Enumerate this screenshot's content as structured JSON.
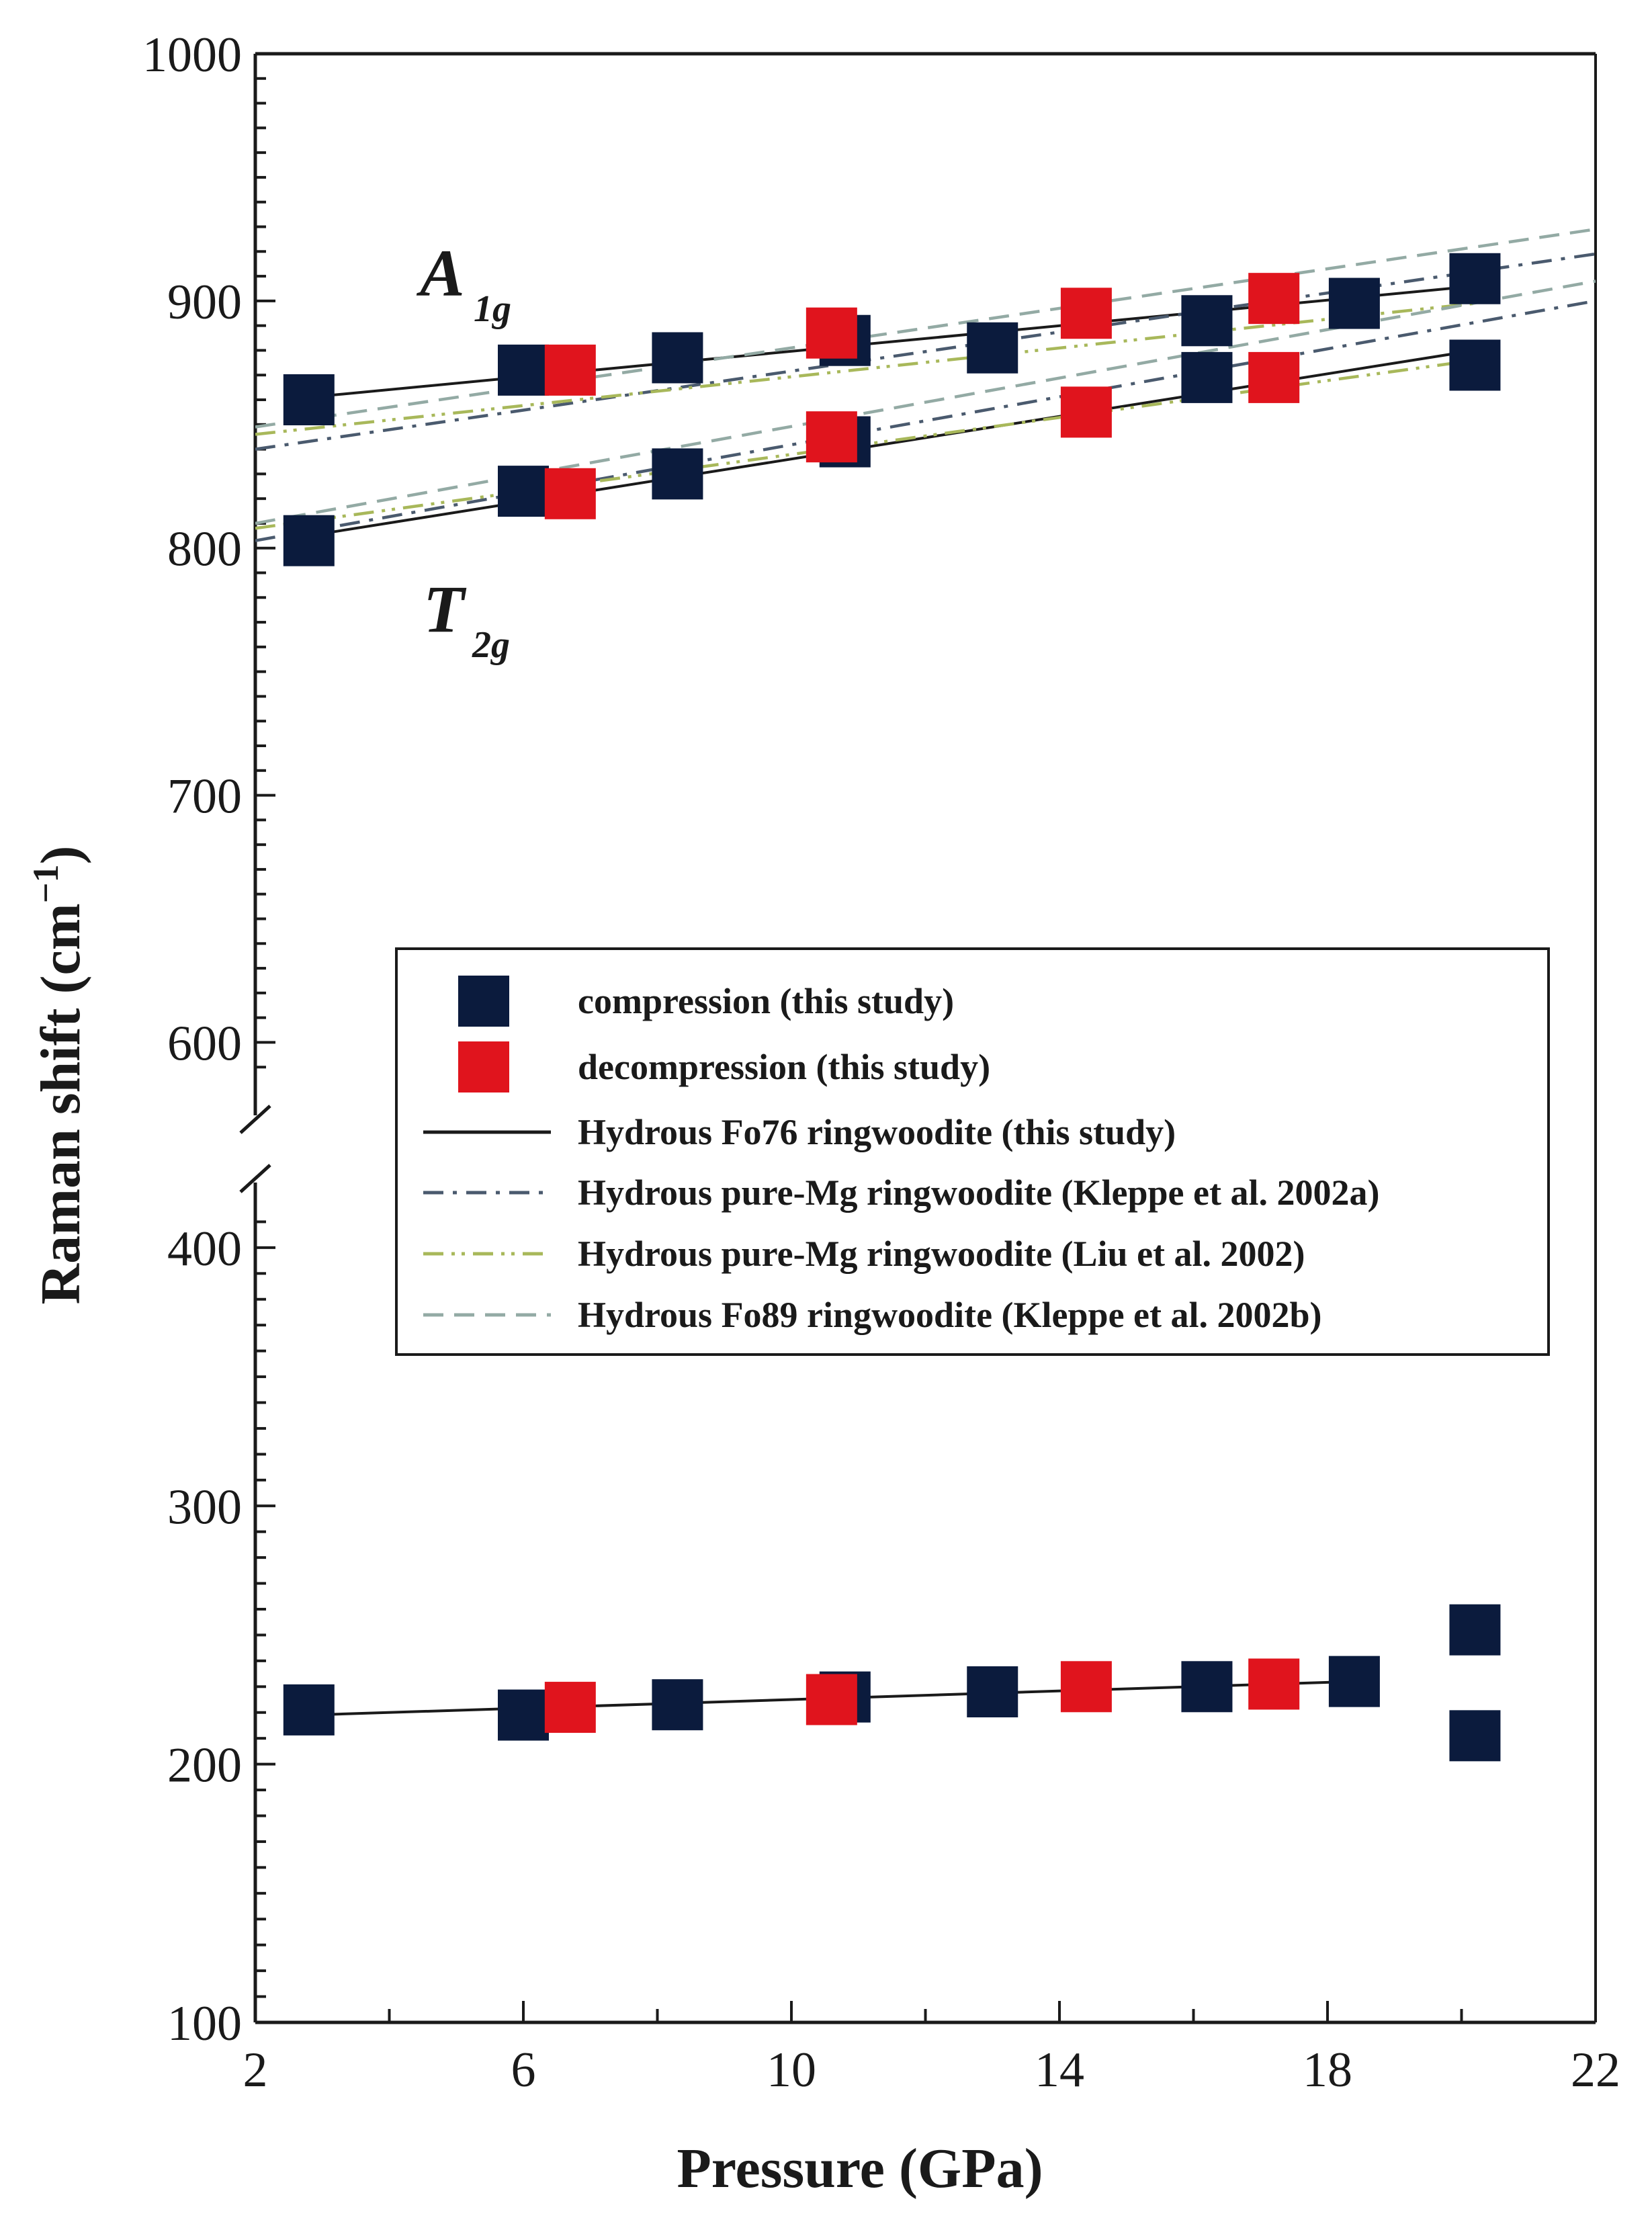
{
  "chart_data": {
    "type": "scatter",
    "title": "",
    "xlabel": "Pressure (GPa)",
    "ylabel_main": "Raman shift (cm",
    "ylabel_sup": "−1",
    "ylabel_close": ")",
    "xlim": [
      2,
      22
    ],
    "ylim_lower": [
      100,
      420
    ],
    "ylim_upper": [
      580,
      1000
    ],
    "x_ticks": [
      "2",
      "6",
      "10",
      "14",
      "18",
      "22"
    ],
    "y_ticks_lower": [
      "100",
      "200",
      "300",
      "400"
    ],
    "y_ticks_upper": [
      "600",
      "700",
      "800",
      "900",
      "1000"
    ],
    "mode_labels": [
      {
        "main": "A",
        "sub": "1g"
      },
      {
        "main": "T",
        "sub": "2g"
      }
    ],
    "colors": {
      "compression": "#0b1b3d",
      "decompression": "#e0141d",
      "fo76_line": "#1a1a1a",
      "kleppe2002a": "#4a5a6e",
      "liu2002": "#a8b85a",
      "kleppe2002b": "#93aaa4"
    },
    "series": [
      {
        "name": "compression (this study)",
        "marker": "square",
        "color": "#0b1b3d",
        "points": [
          [
            2.8,
            860
          ],
          [
            6.0,
            872
          ],
          [
            8.3,
            877
          ],
          [
            10.8,
            884
          ],
          [
            13.0,
            881
          ],
          [
            16.2,
            892
          ],
          [
            18.4,
            899
          ],
          [
            20.2,
            909
          ],
          [
            2.8,
            803
          ],
          [
            6.0,
            823
          ],
          [
            8.3,
            830
          ],
          [
            10.8,
            843
          ],
          [
            16.2,
            869
          ],
          [
            20.2,
            874
          ],
          [
            2.8,
            221
          ],
          [
            6.0,
            219
          ],
          [
            8.3,
            223
          ],
          [
            10.8,
            226
          ],
          [
            13.0,
            228
          ],
          [
            16.2,
            230
          ],
          [
            18.4,
            232
          ],
          [
            20.2,
            252
          ],
          [
            20.2,
            211
          ]
        ]
      },
      {
        "name": "decompression (this study)",
        "marker": "square",
        "color": "#e0141d",
        "points": [
          [
            6.7,
            872
          ],
          [
            10.6,
            887
          ],
          [
            14.4,
            895
          ],
          [
            17.2,
            901
          ],
          [
            6.7,
            822
          ],
          [
            10.6,
            845
          ],
          [
            14.4,
            855
          ],
          [
            17.2,
            869
          ],
          [
            6.7,
            222
          ],
          [
            10.6,
            225
          ],
          [
            14.4,
            230
          ],
          [
            17.2,
            231
          ]
        ]
      },
      {
        "name": "Hydrous Fo76 ringwoodite (this study)",
        "style": "solid",
        "color": "#1a1a1a",
        "segments": [
          [
            [
              2.8,
              861
            ],
            [
              20.2,
              906
            ]
          ],
          [
            [
              2.8,
              805
            ],
            [
              20.2,
              880
            ]
          ],
          [
            [
              2.8,
              219
            ],
            [
              18.4,
              232
            ]
          ]
        ]
      },
      {
        "name": "Hydrous pure-Mg ringwoodite (Kleppe et al. 2002a)",
        "style": "dash-dot",
        "color": "#4a5a6e",
        "segments": [
          [
            [
              2.0,
              840
            ],
            [
              22.0,
              919
            ]
          ],
          [
            [
              2.0,
              803
            ],
            [
              22.0,
              900
            ]
          ]
        ]
      },
      {
        "name": "Hydrous pure-Mg ringwoodite (Liu et al. 2002)",
        "style": "dash-dot-dot",
        "color": "#a8b85a",
        "segments": [
          [
            [
              2.0,
              846
            ],
            [
              20.2,
              899
            ]
          ],
          [
            [
              2.0,
              808
            ],
            [
              20.2,
              876
            ]
          ]
        ]
      },
      {
        "name": "Hydrous Fo89 ringwoodite (Kleppe et al. 2002b)",
        "style": "dashed",
        "color": "#93aaa4",
        "segments": [
          [
            [
              2.0,
              849
            ],
            [
              22.0,
              929
            ]
          ],
          [
            [
              2.0,
              810
            ],
            [
              22.0,
              908
            ]
          ]
        ]
      }
    ],
    "legend": {
      "position": "center-right",
      "entries": [
        "compression (this study)",
        "decompression (this study)",
        "Hydrous Fo76 ringwoodite (this study)",
        "Hydrous pure-Mg ringwoodite (Kleppe et al. 2002a)",
        "Hydrous pure-Mg ringwoodite (Liu et al. 2002)",
        "Hydrous Fo89 ringwoodite (Kleppe et al. 2002b)"
      ]
    }
  }
}
